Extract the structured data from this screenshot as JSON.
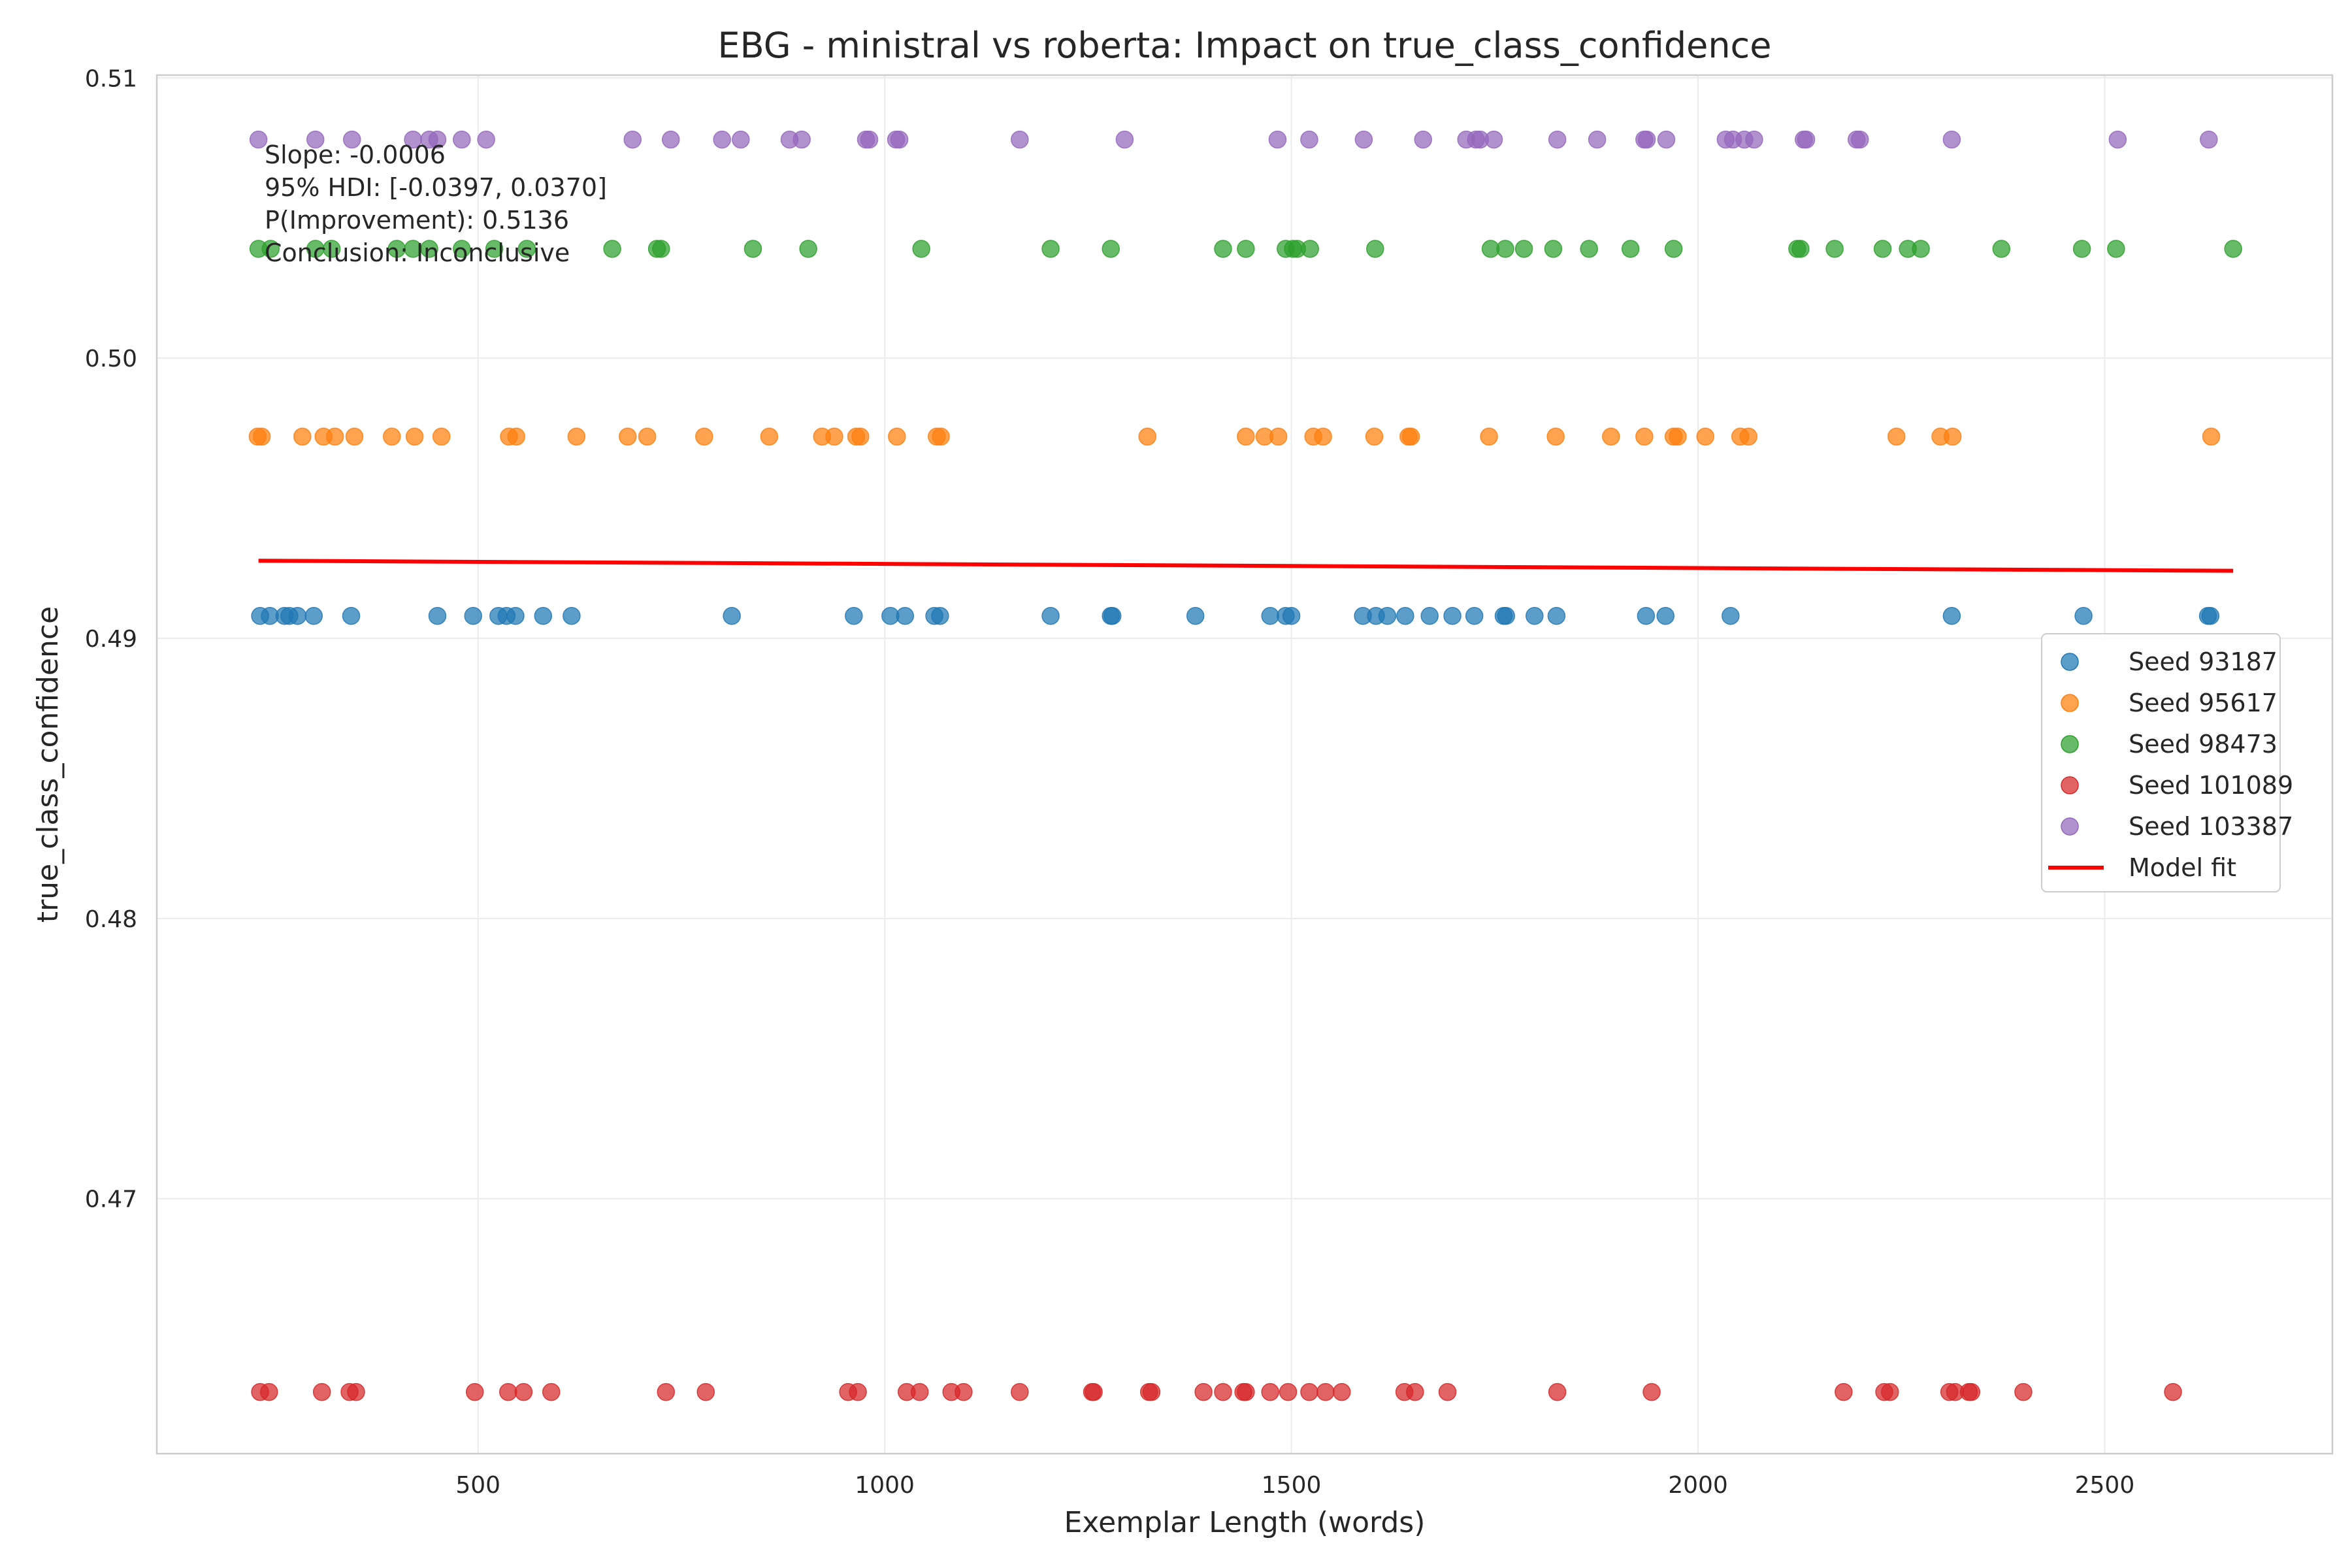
{
  "chart_data": {
    "type": "scatter",
    "title": "EBG - ministral vs roberta: Impact on true_class_confidence",
    "xlabel": "Exemplar Length (words)",
    "ylabel": "true_class_confidence",
    "xlim": [
      105,
      2780
    ],
    "ylim": [
      0.4609,
      0.5101
    ],
    "xticks": [
      500,
      1000,
      1500,
      2000,
      2500
    ],
    "yticks": [
      0.47,
      0.48,
      0.49,
      0.5,
      0.51
    ],
    "ytick_labels": [
      "0.47",
      "0.48",
      "0.49",
      "0.50",
      "0.51"
    ],
    "grid": true,
    "legend_position": "center-right",
    "series": [
      {
        "name": "Seed 93187",
        "color": "#1f77b4",
        "y": 0.4908,
        "x": [
          232,
          244,
          262,
          268,
          278,
          298,
          344,
          450,
          494,
          525,
          535,
          546,
          580,
          615,
          812,
          962,
          1007,
          1025,
          1061,
          1068,
          1204,
          1278,
          1280,
          1382,
          1474,
          1493,
          1500,
          1588,
          1604,
          1618,
          1640,
          1670,
          1698,
          1725,
          1761,
          1764,
          1799,
          1826,
          1936,
          1960,
          2040,
          2312,
          2474,
          2627,
          2630
        ]
      },
      {
        "name": "Seed 95617",
        "color": "#ff7f0e",
        "y": 0.4972,
        "x": [
          229,
          234,
          284,
          310,
          324,
          348,
          394,
          422,
          455,
          538,
          547,
          621,
          684,
          708,
          778,
          858,
          923,
          938,
          965,
          970,
          1015,
          1064,
          1069,
          1323,
          1444,
          1467,
          1484,
          1527,
          1539,
          1602,
          1644,
          1647,
          1743,
          1825,
          1893,
          1934,
          1970,
          1975,
          2009,
          2052,
          2062,
          2244,
          2298,
          2313,
          2631
        ]
      },
      {
        "name": "Seed 98473",
        "color": "#2ca02c",
        "y": 0.5039,
        "x": [
          230,
          245,
          300,
          320,
          400,
          420,
          440,
          480,
          520,
          560,
          665,
          720,
          725,
          838,
          906,
          1045,
          1204,
          1278,
          1416,
          1444,
          1493,
          1502,
          1507,
          1523,
          1603,
          1745,
          1763,
          1786,
          1822,
          1866,
          1917,
          1970,
          2122,
          2126,
          2168,
          2227,
          2258,
          2274,
          2373,
          2472,
          2514,
          2658
        ]
      },
      {
        "name": "Seed 101089",
        "color": "#d62728",
        "y": 0.4631,
        "x": [
          232,
          243,
          308,
          342,
          350,
          496,
          537,
          556,
          590,
          731,
          780,
          955,
          967,
          1027,
          1043,
          1082,
          1097,
          1166,
          1255,
          1257,
          1325,
          1328,
          1392,
          1416,
          1441,
          1444,
          1474,
          1496,
          1522,
          1542,
          1562,
          1639,
          1652,
          1692,
          1827,
          1943,
          2179,
          2229,
          2236,
          2309,
          2316,
          2333,
          2336,
          2400,
          2584
        ]
      },
      {
        "name": "Seed 103387",
        "color": "#9467bd",
        "y": 0.5078,
        "x": [
          230,
          300,
          345,
          420,
          440,
          450,
          480,
          510,
          690,
          737,
          800,
          823,
          883,
          898,
          977,
          981,
          1014,
          1018,
          1166,
          1295,
          1483,
          1522,
          1589,
          1662,
          1715,
          1727,
          1732,
          1749,
          1827,
          1876,
          1934,
          1937,
          1961,
          2034,
          2043,
          2057,
          2069,
          2130,
          2133,
          2195,
          2199,
          2312,
          2516,
          2628
        ]
      }
    ],
    "model_fit": {
      "name": "Model fit",
      "color": "#ff0000",
      "x": [
        230,
        2658
      ],
      "y": [
        0.49277,
        0.49241
      ]
    },
    "annotation": [
      "Slope: -0.0006",
      "95% HDI: [-0.0397, 0.0370]",
      "P(Improvement): 0.5136",
      "Conclusion: Inconclusive"
    ]
  }
}
